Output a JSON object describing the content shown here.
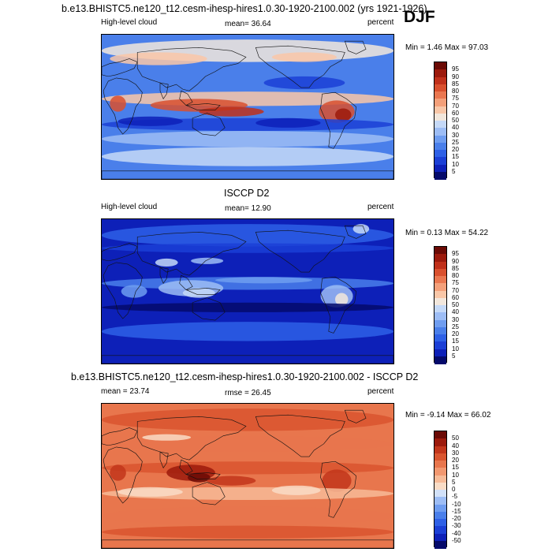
{
  "header": {
    "main_title": "b.e13.BHISTC5.ne120_t12.cesm-ihesp-hires1.0.30-1920-2100.002 (yrs 1921-1926)",
    "season": "DJF"
  },
  "panels": [
    {
      "id": "model",
      "left_label": "High-level cloud",
      "center_label": "mean=  36.64",
      "right_label": "percent",
      "minmax": "Min =   1.46 Max =  97.03",
      "colorbar": [
        "95",
        "90",
        "85",
        "80",
        "75",
        "70",
        "60",
        "50",
        "40",
        "30",
        "25",
        "20",
        "15",
        "10",
        "5"
      ]
    },
    {
      "id": "obs",
      "title": "ISCCP D2",
      "left_label": "High-level cloud",
      "center_label": "mean=  12.90",
      "right_label": "percent",
      "minmax": "Min =   0.13 Max =  54.22",
      "colorbar": [
        "95",
        "90",
        "85",
        "80",
        "75",
        "70",
        "60",
        "50",
        "40",
        "30",
        "25",
        "20",
        "15",
        "10",
        "5"
      ]
    },
    {
      "id": "diff",
      "title": "b.e13.BHISTC5.ne120_t12.cesm-ihesp-hires1.0.30-1920-2100.002 - ISCCP D2",
      "left_label": "mean =  23.74",
      "center_label": "rmse =  26.45",
      "right_label": "percent",
      "minmax": "Min =  -9.14 Max =  66.02",
      "colorbar": [
        "50",
        "40",
        "30",
        "20",
        "15",
        "10",
        "5",
        "0",
        "-5",
        "-10",
        "-15",
        "-20",
        "-30",
        "-40",
        "-50"
      ]
    }
  ],
  "colors": {
    "sequential": [
      "#050a6b",
      "#0d20b8",
      "#1b3fd6",
      "#2e60e6",
      "#4a7fea",
      "#6f9df0",
      "#9dbdf5",
      "#c5d9f7",
      "#f2e7dc",
      "#f9c7a8",
      "#f4a07a",
      "#ea7750",
      "#d9502e",
      "#c0301a",
      "#9c1a0c",
      "#6b0a05"
    ],
    "diverging": [
      "#050a6b",
      "#0d20b8",
      "#1b3fd6",
      "#2e60e6",
      "#4a7fea",
      "#6f9df0",
      "#9dbdf5",
      "#d2e1f8",
      "#f9dcc6",
      "#f7bb98",
      "#f29870",
      "#e8764d",
      "#d9552f",
      "#c2361b",
      "#9c1a0c",
      "#6b0a05"
    ]
  }
}
